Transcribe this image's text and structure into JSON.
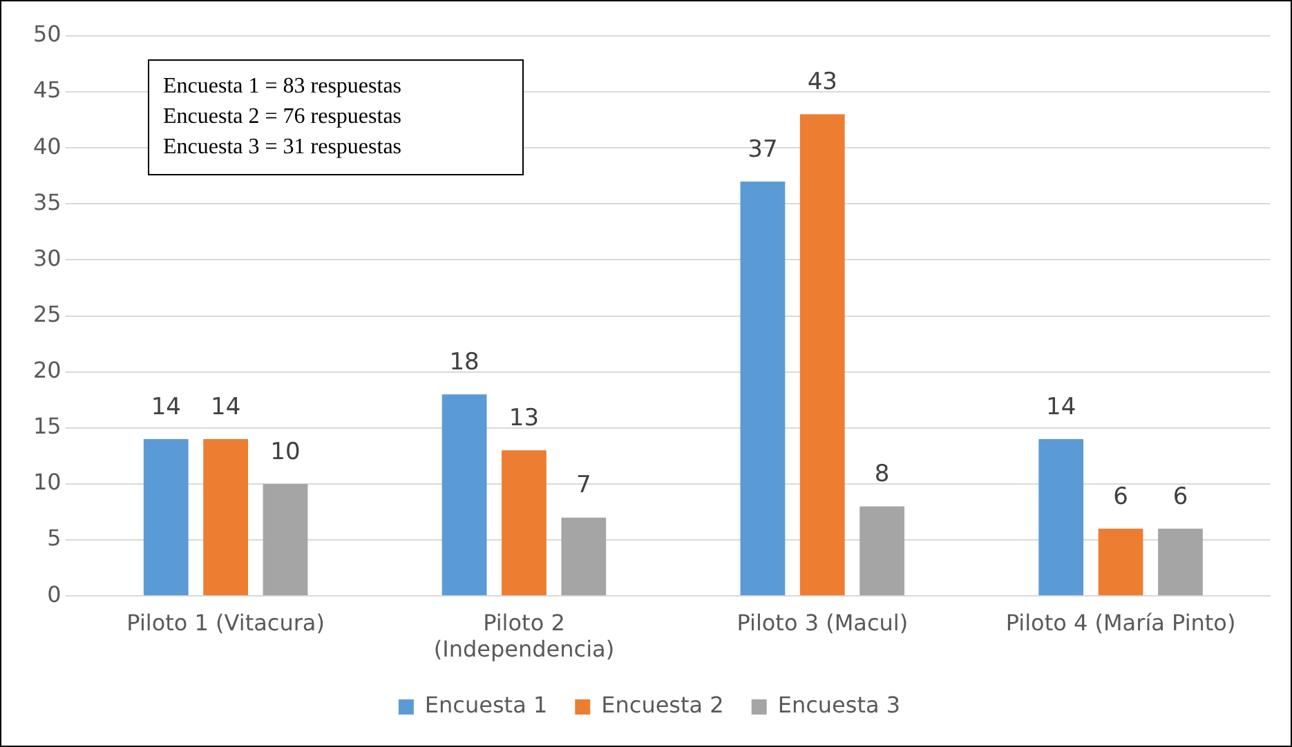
{
  "chart_data": {
    "type": "bar",
    "categories": [
      "Piloto 1 (Vitacura)",
      "Piloto 2\n(Independencia)",
      "Piloto 3 (Macul)",
      "Piloto 4 (María Pinto)"
    ],
    "series": [
      {
        "name": "Encuesta 1",
        "color": "#5b9bd5",
        "values": [
          14,
          18,
          37,
          14
        ]
      },
      {
        "name": "Encuesta 2",
        "color": "#ed7d31",
        "values": [
          14,
          13,
          43,
          6
        ]
      },
      {
        "name": "Encuesta 3",
        "color": "#a5a5a5",
        "values": [
          10,
          7,
          8,
          6
        ]
      }
    ],
    "ylim": [
      0,
      50
    ],
    "yticks": [
      0,
      5,
      10,
      15,
      20,
      25,
      30,
      35,
      40,
      45,
      50
    ],
    "grid": "y",
    "legend": "bottom",
    "data_labels": true,
    "annotations": [
      "Encuesta 1 = 83 respuestas",
      "Encuesta 2 = 76 respuestas",
      "Encuesta 3 = 31 respuestas"
    ]
  }
}
